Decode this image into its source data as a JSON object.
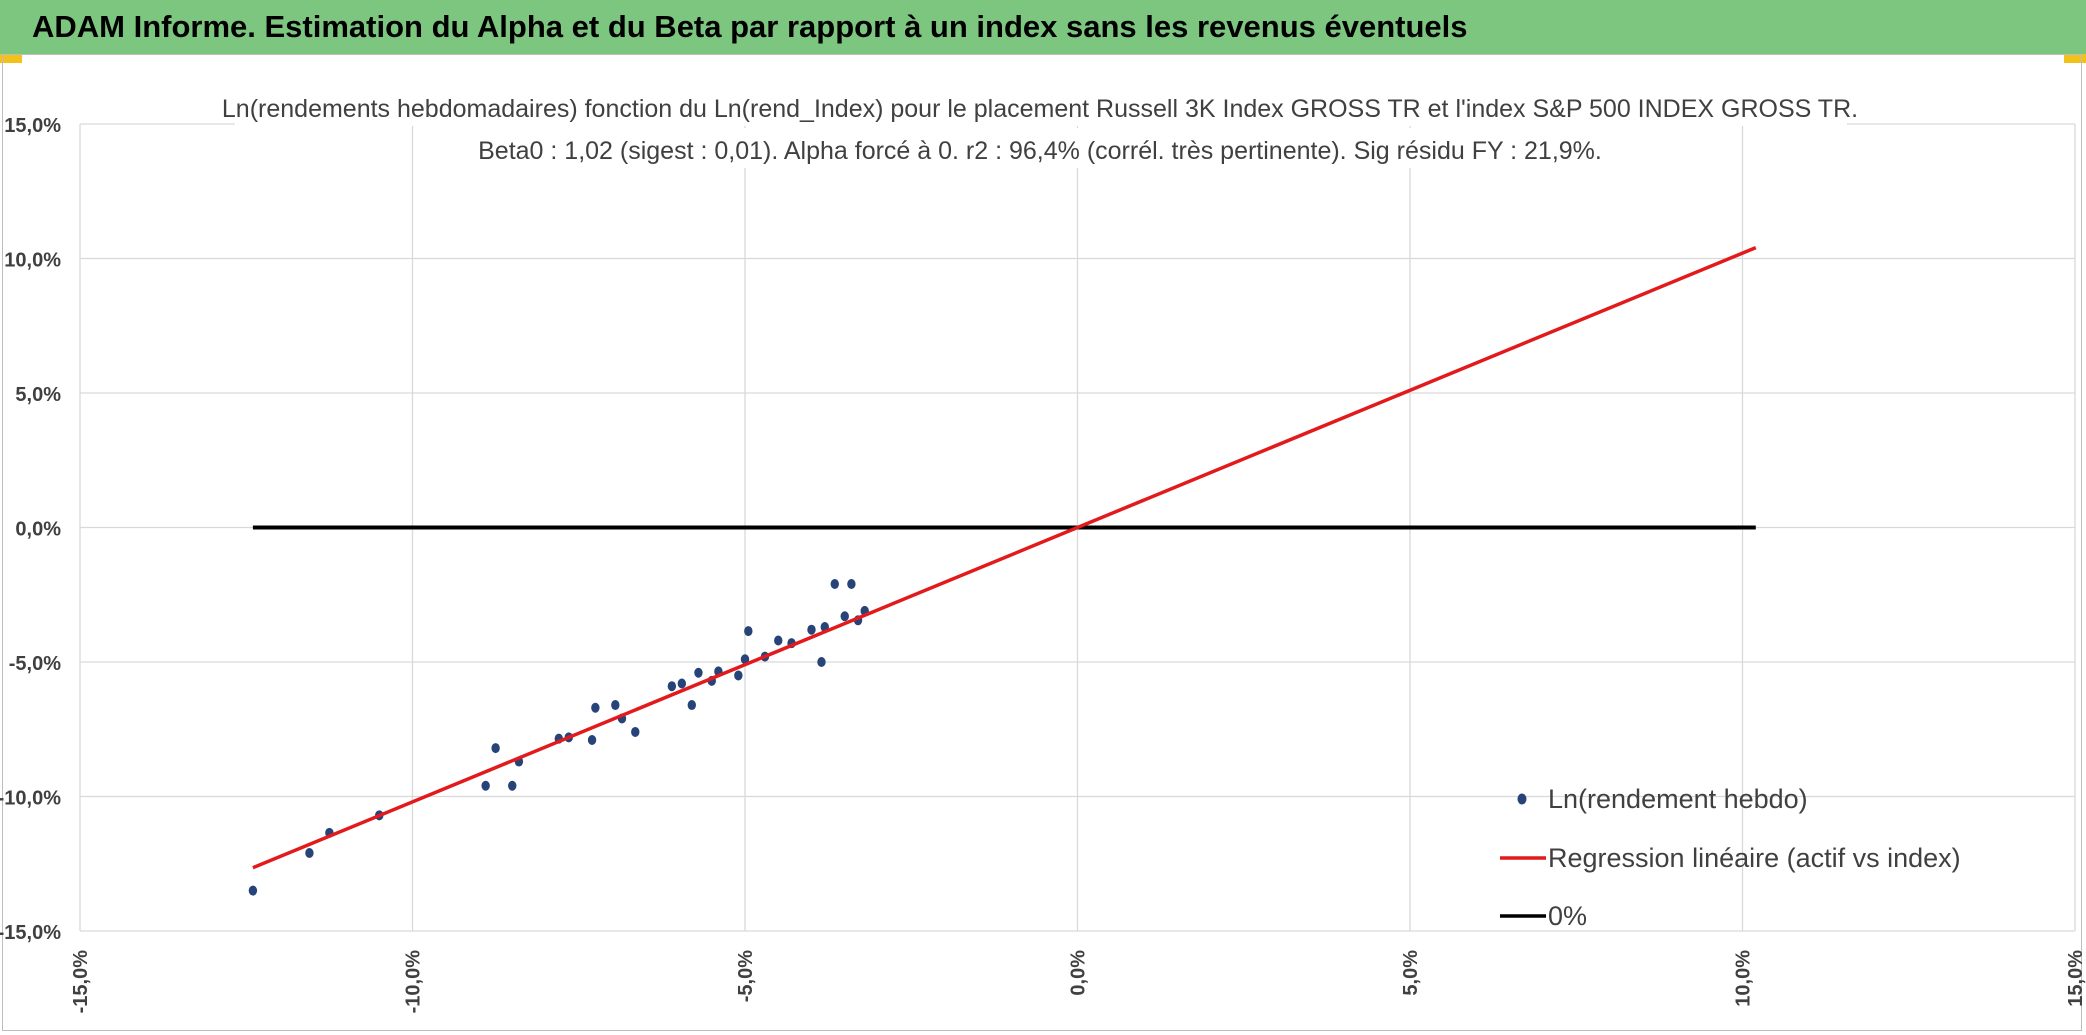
{
  "banner": {
    "title": "ADAM Informe. Estimation du Alpha et du Beta par rapport à un index sans les revenus éventuels",
    "color": "#7dc67f"
  },
  "chart_data": {
    "type": "scatter",
    "title": "Ln(rendements hebdomadaires) fonction du Ln(rend_Index) pour le placement Russell 3K Index GROSS TR et l'index S&P 500 INDEX GROSS TR.",
    "subtitle": "Beta0 : 1,02 (sigest : 0,01). Alpha forcé à 0. r2 : 96,4% (corrél. très pertinente). Sig résidu FY : 21,9%.",
    "xlim": [
      -15,
      15
    ],
    "ylim": [
      -15,
      15
    ],
    "x_ticks": [
      "-15,0%",
      "-10,0%",
      "-5,0%",
      "0,0%",
      "5,0%",
      "10,0%",
      "15,0%"
    ],
    "y_ticks": [
      "15,0%",
      "10,0%",
      "5,0%",
      "0,0%",
      "-5,0%",
      "-10,0%",
      "-15,0%"
    ],
    "grid": true,
    "legend_position": "bottom-right",
    "series": [
      {
        "name": "Ln(rendement hebdo)",
        "kind": "scatter",
        "color": "#264478",
        "points": [
          [
            -12.4,
            -13.5
          ],
          [
            -11.55,
            -12.1
          ],
          [
            -11.25,
            -11.35
          ],
          [
            -10.5,
            -10.7
          ],
          [
            -8.9,
            -9.6
          ],
          [
            -8.75,
            -8.2
          ],
          [
            -8.5,
            -9.6
          ],
          [
            -8.4,
            -8.7
          ],
          [
            -7.8,
            -7.85
          ],
          [
            -7.65,
            -7.8
          ],
          [
            -7.3,
            -7.9
          ],
          [
            -7.25,
            -6.7
          ],
          [
            -6.95,
            -6.6
          ],
          [
            -6.85,
            -7.1
          ],
          [
            -6.65,
            -7.6
          ],
          [
            -6.1,
            -5.9
          ],
          [
            -5.95,
            -5.8
          ],
          [
            -5.8,
            -6.6
          ],
          [
            -5.7,
            -5.4
          ],
          [
            -5.4,
            -5.35
          ],
          [
            -5.5,
            -5.7
          ],
          [
            -5.1,
            -5.5
          ],
          [
            -5.0,
            -4.9
          ],
          [
            -4.95,
            -3.85
          ],
          [
            -4.7,
            -4.8
          ],
          [
            -4.5,
            -4.2
          ],
          [
            -4.3,
            -4.3
          ],
          [
            -4.0,
            -3.8
          ],
          [
            -3.85,
            -5.0
          ],
          [
            -3.8,
            -3.7
          ],
          [
            -3.65,
            -2.1
          ],
          [
            -3.5,
            -3.3
          ],
          [
            -3.4,
            -2.1
          ],
          [
            -3.3,
            -3.45
          ],
          [
            -3.2,
            -3.1
          ]
        ]
      },
      {
        "name": "Regression linéaire (actif vs index)",
        "kind": "line",
        "color": "#e31a1c",
        "slope": 1.02,
        "x_range": [
          -12.4,
          10.2
        ]
      },
      {
        "name": "0%",
        "kind": "line",
        "color": "#000000",
        "y_value": 0,
        "x_range": [
          -12.4,
          10.2
        ]
      }
    ]
  }
}
